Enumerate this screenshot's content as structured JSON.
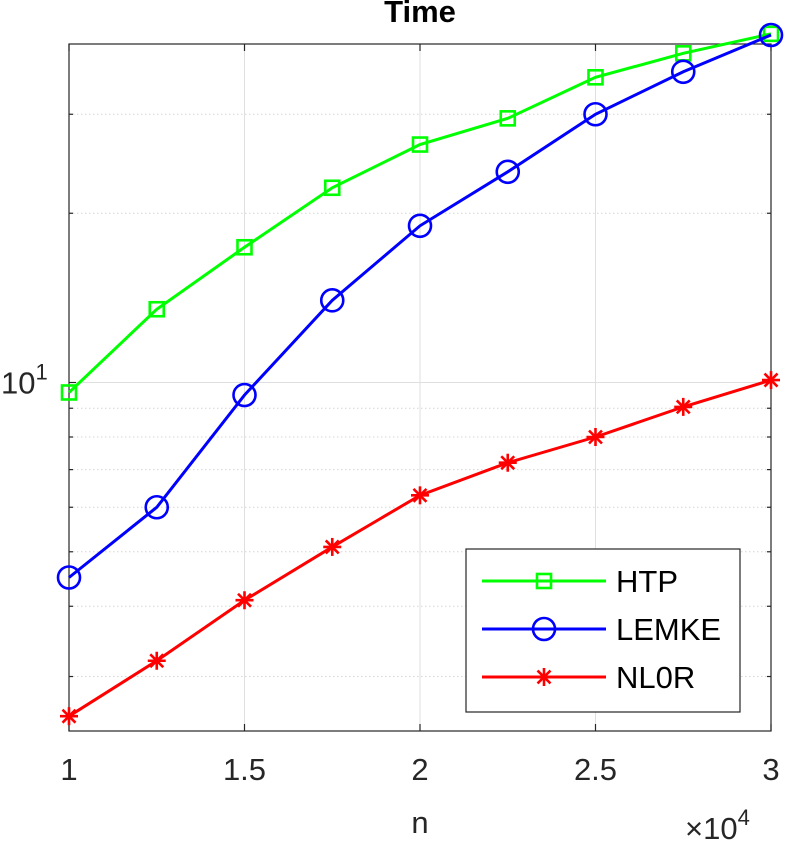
{
  "chart_data": {
    "type": "line",
    "title": "Time",
    "xlabel": "n",
    "ylabel": "",
    "x_exponent_label": "×10",
    "x_exponent_power": "4",
    "x": [
      1,
      1.25,
      1.5,
      1.75,
      2,
      2.25,
      2.5,
      2.75,
      3
    ],
    "x_ticks": [
      1,
      1.5,
      2,
      2.5,
      3
    ],
    "x_tick_labels": [
      "1",
      "1.5",
      "2",
      "2.5",
      "3"
    ],
    "xlim": [
      1,
      3
    ],
    "y_scale": "log",
    "ylim": [
      2.4,
      40
    ],
    "y_tick_label": {
      "base": "10",
      "power": "1",
      "value": 10
    },
    "y_minor_ticks": [
      3,
      4,
      5,
      6,
      7,
      8,
      9,
      20,
      30
    ],
    "grid": true,
    "legend_position": "bottom-right",
    "series": [
      {
        "name": "HTP",
        "color": "#00ff00",
        "marker": "square",
        "values": [
          9.6,
          13.5,
          17.4,
          22.2,
          26.5,
          29.5,
          34.9,
          38.5,
          41.7
        ]
      },
      {
        "name": "LEMKE",
        "color": "#0000ff",
        "marker": "circle",
        "values": [
          4.5,
          6.0,
          9.5,
          14.0,
          19.0,
          23.7,
          30.0,
          35.7,
          41.5
        ]
      },
      {
        "name": "NL0R",
        "color": "#ff0000",
        "marker": "asterisk",
        "values": [
          2.55,
          3.2,
          4.1,
          5.1,
          6.3,
          7.2,
          8.0,
          9.05,
          10.1
        ]
      }
    ]
  }
}
